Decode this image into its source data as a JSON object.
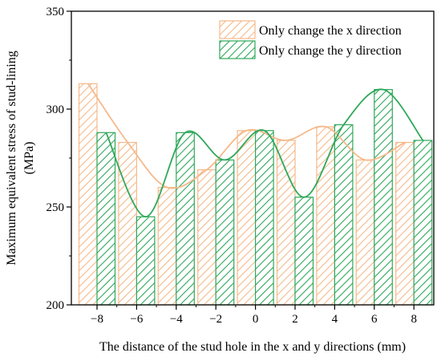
{
  "chart_data": {
    "type": "bar",
    "x": [
      -8,
      -6,
      -4,
      -2,
      0,
      2,
      4,
      6,
      8
    ],
    "tick_labels_x": [
      "−8",
      "−6",
      "−4",
      "−2",
      "0",
      "2",
      "4",
      "6",
      "8"
    ],
    "yticks": [
      200,
      250,
      300,
      350
    ],
    "ylim": [
      200,
      350
    ],
    "xlabel": "The distance of the stud hole in the x and y directions (mm)",
    "ylabel_line1": "Maximum equivalent stress of stud-lining",
    "ylabel_line2": "(MPa)",
    "grid": false,
    "legend_position": "top-right",
    "series": [
      {
        "name": "Only change the x direction",
        "values": [
          313,
          283,
          260,
          269,
          289,
          284,
          291,
          274,
          283
        ],
        "color": "#f5b98a",
        "pattern": "hatch-diagonal",
        "curve": "smoothed line"
      },
      {
        "name": "Only change the y direction",
        "values": [
          288,
          245,
          288,
          274,
          289,
          255,
          292,
          310,
          284
        ],
        "color": "#2fa85a",
        "pattern": "hatch-diagonal",
        "curve": "smoothed line"
      }
    ]
  }
}
